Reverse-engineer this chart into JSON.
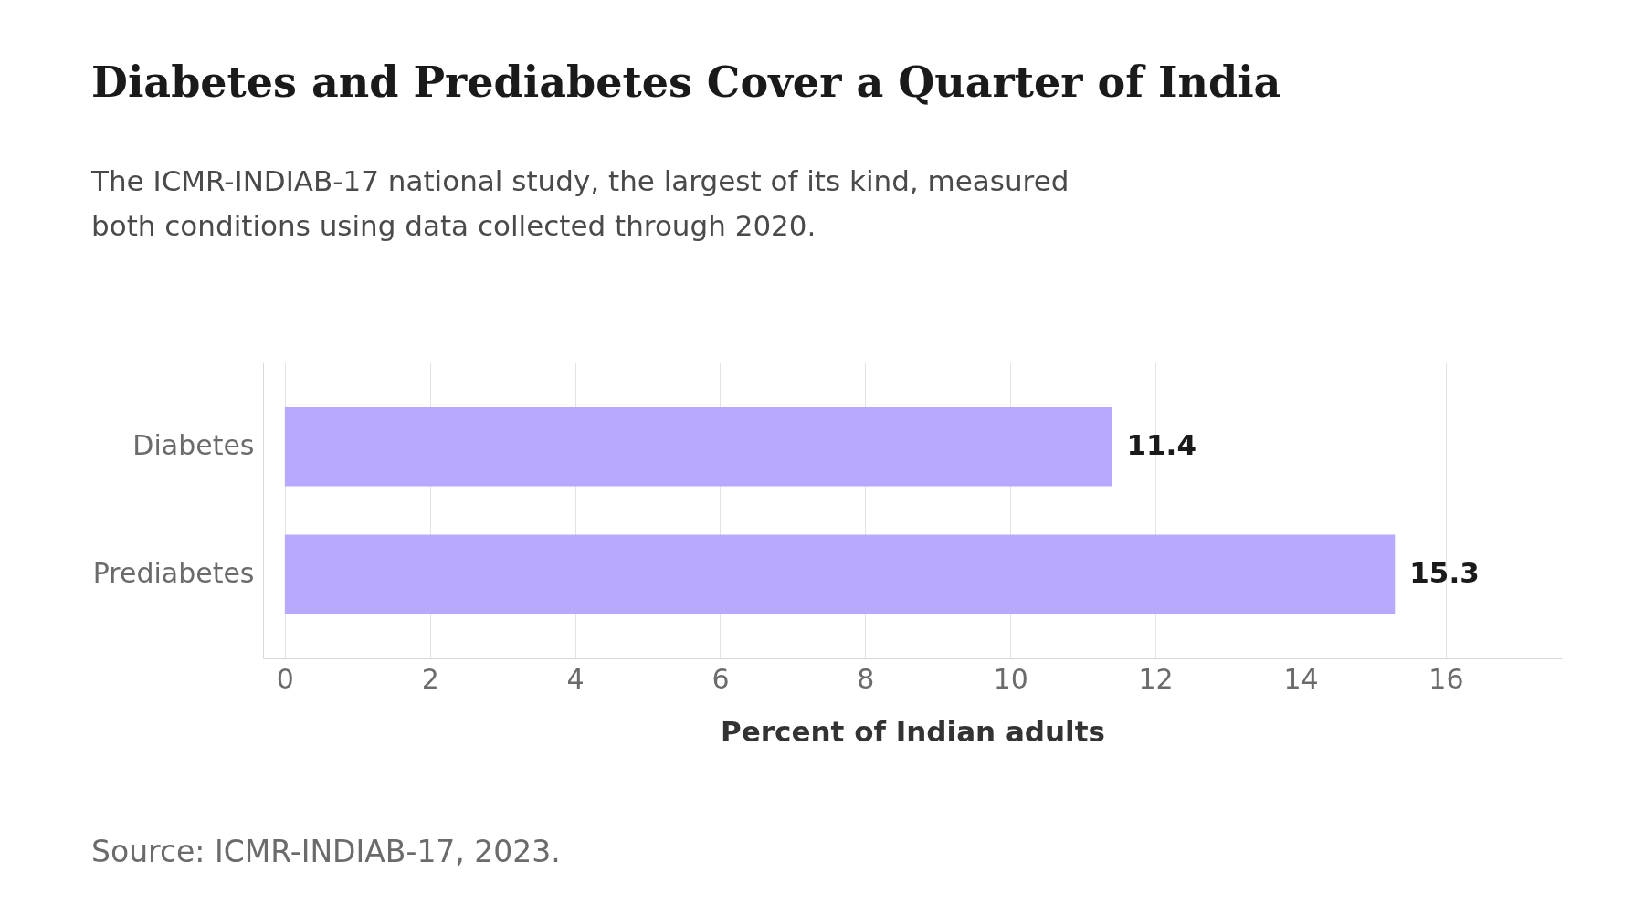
{
  "chart_data": {
    "type": "bar",
    "orientation": "horizontal",
    "title": "Diabetes and Prediabetes Cover a Quarter of India",
    "subtitle": "The ICMR-INDIAB-17 national study, the largest of its kind, measured both conditions using data collected through 2020.",
    "xlabel": "Percent of Indian adults",
    "categories": [
      "Diabetes",
      "Prediabetes"
    ],
    "values": [
      11.4,
      15.3
    ],
    "color": "#b8a9ff",
    "xlim": [
      -0.3,
      17.6
    ],
    "xticks": [
      0,
      2,
      4,
      6,
      8,
      10,
      12,
      14,
      16
    ],
    "grid": "x",
    "data_labels": true,
    "annotations": [
      "Source: ICMR-INDIAB-17, 2023."
    ]
  }
}
